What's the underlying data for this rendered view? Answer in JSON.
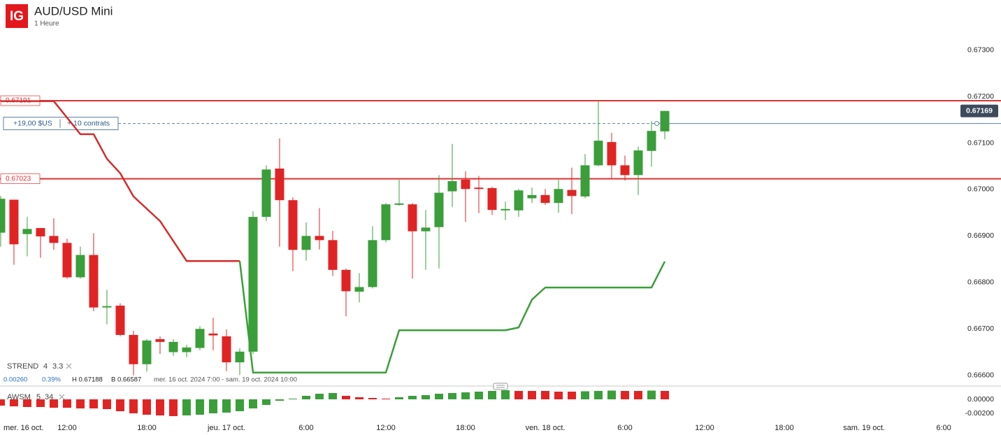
{
  "brand": "IG",
  "chart_data": [
    {
      "type": "candlestick",
      "title": "AUD/USD Mini",
      "subtitle": "1 Heure",
      "x": [
        7,
        8,
        9,
        10,
        11,
        12,
        13,
        14,
        15,
        16,
        17,
        18,
        19,
        20,
        21,
        22,
        23,
        24,
        25,
        26,
        27,
        28,
        29,
        30,
        31,
        32,
        33,
        34,
        35,
        36,
        37,
        38,
        39,
        40,
        41,
        42,
        43,
        44,
        45,
        46,
        47,
        48,
        49,
        50,
        51,
        52,
        53,
        54,
        55,
        56,
        57
      ],
      "open": [
        0.66907,
        0.66978,
        0.66904,
        0.66917,
        0.669,
        0.66885,
        0.66811,
        0.66859,
        0.66746,
        0.6675,
        0.66687,
        0.66624,
        0.66678,
        0.6665,
        0.6665,
        0.66659,
        0.6669,
        0.66684,
        0.66628,
        0.66651,
        0.66941,
        0.67045,
        0.66977,
        0.6687,
        0.669,
        0.66891,
        0.66827,
        0.6678,
        0.6679,
        0.66891,
        0.66967,
        0.66968,
        0.6691,
        0.66919,
        0.66996,
        0.67021,
        0.67004,
        0.67003,
        0.66955,
        0.66955,
        0.66981,
        0.66988,
        0.66971,
        0.66999,
        0.66985,
        0.67052,
        0.67102,
        0.67052,
        0.67031,
        0.67083,
        0.67125
      ],
      "high": [
        0.66986,
        0.66978,
        0.66941,
        0.66917,
        0.66938,
        0.66894,
        0.66877,
        0.66906,
        0.66784,
        0.66755,
        0.66696,
        0.66678,
        0.66684,
        0.66678,
        0.66666,
        0.66706,
        0.66724,
        0.66699,
        0.66658,
        0.66953,
        0.67052,
        0.6711,
        0.66983,
        0.66929,
        0.6696,
        0.66911,
        0.6683,
        0.6682,
        0.66921,
        0.66971,
        0.67021,
        0.66971,
        0.66956,
        0.67031,
        0.67098,
        0.67039,
        0.67029,
        0.67006,
        0.66974,
        0.67001,
        0.67004,
        0.67001,
        0.67021,
        0.67047,
        0.67076,
        0.67191,
        0.67122,
        0.67073,
        0.67092,
        0.67147,
        0.67169
      ],
      "low": [
        0.66877,
        0.66838,
        0.66856,
        0.66853,
        0.6687,
        0.66808,
        0.66808,
        0.66738,
        0.6671,
        0.66684,
        0.666,
        0.66608,
        0.66646,
        0.66642,
        0.66639,
        0.66654,
        0.66654,
        0.66609,
        0.66601,
        0.66646,
        0.66932,
        0.66877,
        0.66824,
        0.66847,
        0.66871,
        0.66814,
        0.66727,
        0.66757,
        0.66787,
        0.66886,
        0.66965,
        0.66808,
        0.66827,
        0.6683,
        0.66962,
        0.6693,
        0.66949,
        0.66945,
        0.66934,
        0.66941,
        0.66971,
        0.66967,
        0.6695,
        0.66947,
        0.66981,
        0.6705,
        0.67024,
        0.67019,
        0.66988,
        0.67049,
        0.67108
      ],
      "close": [
        0.6698,
        0.66882,
        0.66915,
        0.66899,
        0.66885,
        0.66811,
        0.66859,
        0.66746,
        0.66749,
        0.66687,
        0.66624,
        0.66675,
        0.66672,
        0.66672,
        0.6666,
        0.667,
        0.66686,
        0.66628,
        0.66651,
        0.66941,
        0.67043,
        0.66977,
        0.6687,
        0.669,
        0.66891,
        0.66827,
        0.66781,
        0.6679,
        0.66891,
        0.66968,
        0.6697,
        0.6691,
        0.66918,
        0.66993,
        0.67018,
        0.67001,
        0.67001,
        0.66956,
        0.66958,
        0.66998,
        0.66988,
        0.66971,
        0.67001,
        0.66986,
        0.67052,
        0.67105,
        0.67052,
        0.67031,
        0.67084,
        0.67126,
        0.67169
      ],
      "up_color": "#3a9e3a",
      "down_color": "#e02424",
      "lines": [
        {
          "color": "#d62a2a",
          "x": [
            7,
            11,
            13,
            14,
            15,
            16,
            17,
            19,
            21,
            25
          ],
          "values": [
            0.6719,
            0.6719,
            0.67119,
            0.67119,
            0.67066,
            0.67035,
            0.66985,
            0.66932,
            0.66846,
            0.66846
          ]
        },
        {
          "color": "#3a9e3a",
          "x": [
            25,
            26,
            36,
            37,
            45,
            46,
            47,
            48,
            56,
            57
          ],
          "values": [
            0.66846,
            0.66606,
            0.66606,
            0.66697,
            0.66697,
            0.66703,
            0.66763,
            0.66789,
            0.66789,
            0.66845
          ]
        }
      ],
      "levels": [
        {
          "value": 0.67191,
          "color": "#e03131"
        },
        {
          "value": 0.67023,
          "color": "#e03131"
        }
      ],
      "position": {
        "value": 0.67142,
        "pnl": "+19,00 $US",
        "size": "+ 10 contrats"
      },
      "last_price": 0.67169,
      "indicator": {
        "name": "STREND",
        "params": [
          4,
          3.3
        ]
      },
      "stats": {
        "change": "0.00260",
        "change_pct": "0.39%",
        "high": "H 0.67188",
        "low": "B 0.66587",
        "range": "mer. 16 oct. 2024 7:00 - sam. 19 oct. 2024 10:00"
      },
      "xlim": [
        6.95,
        79.05
      ],
      "ylim": [
        0.6658,
        0.6734
      ],
      "yticks": [
        {
          "value": 0.673,
          "label": "0.67300"
        },
        {
          "value": 0.672,
          "label": "0.67200"
        },
        {
          "value": 0.671,
          "label": "0.67100"
        },
        {
          "value": 0.67,
          "label": "0.67000"
        },
        {
          "value": 0.669,
          "label": "0.66900"
        },
        {
          "value": 0.668,
          "label": "0.66800"
        },
        {
          "value": 0.667,
          "label": "0.66700"
        },
        {
          "value": 0.666,
          "label": "0.66600"
        }
      ],
      "x_start_label": "mer. 16 oct.",
      "xticks": [
        {
          "value": 12,
          "label": "12:00"
        },
        {
          "value": 18,
          "label": "18:00"
        },
        {
          "value": 24,
          "label": "jeu. 17 oct."
        },
        {
          "value": 30,
          "label": "6:00"
        },
        {
          "value": 36,
          "label": "12:00"
        },
        {
          "value": 42,
          "label": "18:00"
        },
        {
          "value": 48,
          "label": "ven. 18 oct."
        },
        {
          "value": 54,
          "label": "6:00"
        },
        {
          "value": 60,
          "label": "12:00"
        },
        {
          "value": 66,
          "label": "18:00"
        },
        {
          "value": 72,
          "label": "sam. 19 oct."
        },
        {
          "value": 78,
          "label": "6:00"
        }
      ]
    },
    {
      "type": "bar",
      "indicator": {
        "name": "AWSM",
        "params": [
          5,
          34
        ]
      },
      "x": [
        7,
        8,
        9,
        10,
        11,
        12,
        13,
        14,
        15,
        16,
        17,
        18,
        19,
        20,
        21,
        22,
        23,
        24,
        25,
        26,
        27,
        28,
        29,
        30,
        31,
        32,
        33,
        34,
        35,
        36,
        37,
        38,
        39,
        40,
        41,
        42,
        43,
        44,
        45,
        46,
        47,
        48,
        49,
        50,
        51,
        52,
        53,
        54,
        55,
        56,
        57
      ],
      "values": [
        -0.0009,
        -0.001,
        -0.0011,
        -0.0011,
        -0.0012,
        -0.0012,
        -0.0013,
        -0.0013,
        -0.0014,
        -0.0017,
        -0.002,
        -0.0022,
        -0.0023,
        -0.0024,
        -0.0023,
        -0.0022,
        -0.002,
        -0.0019,
        -0.0017,
        -0.0013,
        -0.0008,
        -0.0002,
        0.0001,
        0.0005,
        0.0008,
        0.0009,
        0.0005,
        0.0003,
        0.0002,
        0.0001,
        0.0003,
        0.0005,
        0.0006,
        0.0008,
        0.0009,
        0.001,
        0.0011,
        0.0012,
        0.0013,
        0.0012,
        0.0012,
        0.0012,
        0.0011,
        0.0011,
        0.00115,
        0.0012,
        0.00125,
        0.0012,
        0.0012,
        0.00125,
        0.0012
      ],
      "up_color": "#3a9e3a",
      "down_color": "#e02424",
      "ylim": [
        -0.0029,
        0.0018
      ],
      "yticks": [
        {
          "value": 0,
          "label": "0.00000"
        },
        {
          "value": -0.002,
          "label": "-0.00200"
        }
      ]
    }
  ]
}
